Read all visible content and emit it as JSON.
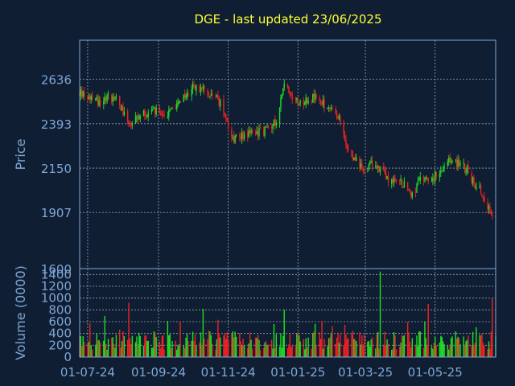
{
  "title": "DGE - last updated 23/06/2025",
  "colors": {
    "background": "#0f1e33",
    "title": "#ffff33",
    "axis_text": "#7ea6d4",
    "frame": "#7ea6d4",
    "grid": "#c8d2e0",
    "up": "#22dd22",
    "down": "#ee2222"
  },
  "chart_data": [
    {
      "type": "candlestick",
      "ylabel": "Price",
      "y_ticks": [
        1600,
        1907,
        2150,
        2393,
        2636
      ],
      "ylim": [
        1600,
        2850
      ],
      "x_ticks": [
        "01-07-24",
        "01-09-24",
        "01-11-24",
        "01-01-25",
        "01-03-25",
        "01-05-25"
      ],
      "x_tick_dates": [
        "2024-07-01",
        "2024-09-01",
        "2024-11-01",
        "2025-01-01",
        "2025-03-01",
        "2025-05-01"
      ],
      "x_start": "2024-06-24",
      "x_end": "2025-06-23",
      "grid": true,
      "trend_anchors": [
        [
          "2024-06-24",
          2560
        ],
        [
          "2024-07-10",
          2520
        ],
        [
          "2024-07-25",
          2545
        ],
        [
          "2024-08-08",
          2385
        ],
        [
          "2024-08-25",
          2475
        ],
        [
          "2024-09-05",
          2430
        ],
        [
          "2024-09-20",
          2510
        ],
        [
          "2024-10-01",
          2595
        ],
        [
          "2024-10-10",
          2575
        ],
        [
          "2024-10-18",
          2560
        ],
        [
          "2024-10-28",
          2480
        ],
        [
          "2024-11-01",
          2390
        ],
        [
          "2024-11-05",
          2310
        ],
        [
          "2024-11-15",
          2340
        ],
        [
          "2024-12-01",
          2350
        ],
        [
          "2024-12-12",
          2400
        ],
        [
          "2024-12-20",
          2600
        ],
        [
          "2025-01-02",
          2510
        ],
        [
          "2025-01-15",
          2540
        ],
        [
          "2025-01-27",
          2480
        ],
        [
          "2025-02-06",
          2410
        ],
        [
          "2025-02-13",
          2280
        ],
        [
          "2025-02-25",
          2150
        ],
        [
          "2025-03-10",
          2175
        ],
        [
          "2025-03-20",
          2095
        ],
        [
          "2025-04-03",
          2065
        ],
        [
          "2025-04-10",
          2010
        ],
        [
          "2025-04-20",
          2090
        ],
        [
          "2025-05-05",
          2110
        ],
        [
          "2025-05-15",
          2195
        ],
        [
          "2025-05-28",
          2150
        ],
        [
          "2025-06-05",
          2060
        ],
        [
          "2025-06-12",
          2000
        ],
        [
          "2025-06-23",
          1870
        ]
      ]
    },
    {
      "type": "bar",
      "ylabel": "Volume (0000)",
      "y_ticks": [
        0,
        200,
        400,
        600,
        800,
        1000,
        1200,
        1400
      ],
      "ylim": [
        0,
        1500
      ],
      "grid": true,
      "spikes": [
        [
          "2024-08-06",
          920
        ],
        [
          "2024-10-10",
          820
        ],
        [
          "2024-12-20",
          800
        ],
        [
          "2025-03-14",
          1450
        ],
        [
          "2025-04-25",
          900
        ],
        [
          "2025-06-20",
          1000
        ]
      ]
    }
  ]
}
